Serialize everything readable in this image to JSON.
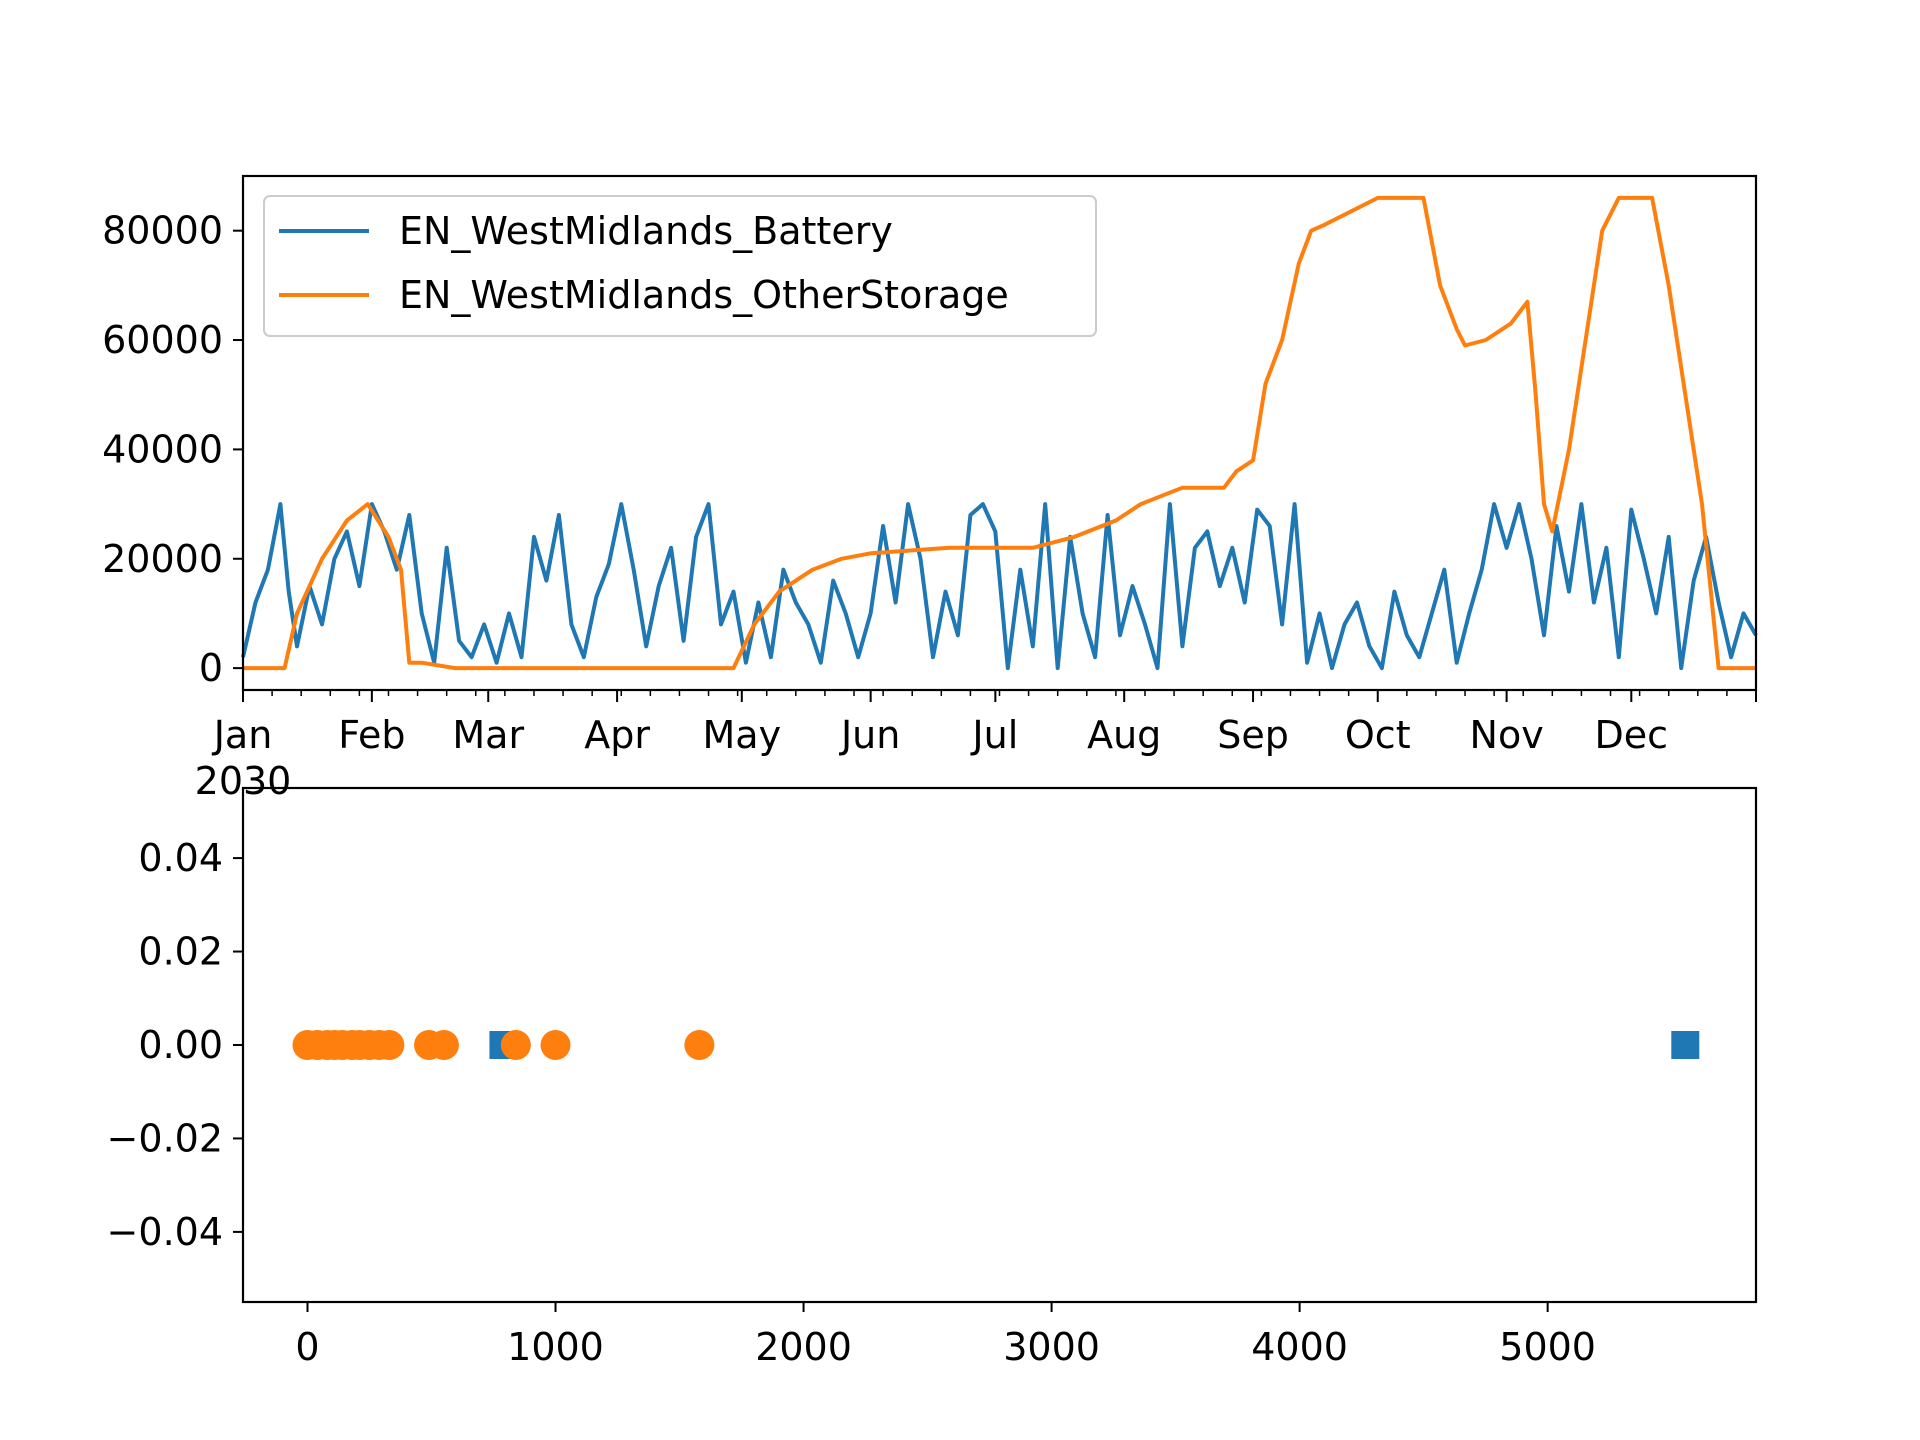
{
  "colors": {
    "battery": "#1f77b4",
    "other_storage": "#ff7f0e",
    "axes": "#000000",
    "legend_border": "#cccccc",
    "background": "#ffffff"
  },
  "chart_data": [
    {
      "type": "line",
      "title": "",
      "xlabel": "",
      "ylabel": "",
      "x_axis": "date",
      "xlim": [
        "2030-01-01",
        "2030-12-31"
      ],
      "ylim": [
        -4000,
        90000
      ],
      "x_tick_labels": [
        "Jan\n2030",
        "Feb",
        "Mar",
        "Apr",
        "May",
        "Jun",
        "Jul",
        "Aug",
        "Sep",
        "Oct",
        "Nov",
        "Dec"
      ],
      "y_tick_values": [
        0,
        20000,
        40000,
        60000,
        80000
      ],
      "y_tick_labels": [
        "0",
        "20000",
        "40000",
        "60000",
        "80000"
      ],
      "grid": false,
      "legend_position": "top-left",
      "series": [
        {
          "name": "EN_WestMidlands_Battery",
          "color": "#1f77b4",
          "x": [
            "2030-01-01",
            "2030-01-04",
            "2030-01-07",
            "2030-01-10",
            "2030-01-12",
            "2030-01-14",
            "2030-01-17",
            "2030-01-20",
            "2030-01-23",
            "2030-01-26",
            "2030-01-29",
            "2030-02-01",
            "2030-02-04",
            "2030-02-07",
            "2030-02-10",
            "2030-02-13",
            "2030-02-16",
            "2030-02-19",
            "2030-02-22",
            "2030-02-25",
            "2030-02-28",
            "2030-03-03",
            "2030-03-06",
            "2030-03-09",
            "2030-03-12",
            "2030-03-15",
            "2030-03-18",
            "2030-03-21",
            "2030-03-24",
            "2030-03-27",
            "2030-03-30",
            "2030-04-02",
            "2030-04-05",
            "2030-04-08",
            "2030-04-11",
            "2030-04-14",
            "2030-04-17",
            "2030-04-20",
            "2030-04-23",
            "2030-04-26",
            "2030-04-29",
            "2030-05-02",
            "2030-05-05",
            "2030-05-08",
            "2030-05-11",
            "2030-05-14",
            "2030-05-17",
            "2030-05-20",
            "2030-05-23",
            "2030-05-26",
            "2030-05-29",
            "2030-06-01",
            "2030-06-04",
            "2030-06-07",
            "2030-06-10",
            "2030-06-13",
            "2030-06-16",
            "2030-06-19",
            "2030-06-22",
            "2030-06-25",
            "2030-06-28",
            "2030-07-01",
            "2030-07-04",
            "2030-07-07",
            "2030-07-10",
            "2030-07-13",
            "2030-07-16",
            "2030-07-19",
            "2030-07-22",
            "2030-07-25",
            "2030-07-28",
            "2030-07-31",
            "2030-08-03",
            "2030-08-06",
            "2030-08-09",
            "2030-08-12",
            "2030-08-15",
            "2030-08-18",
            "2030-08-21",
            "2030-08-24",
            "2030-08-27",
            "2030-08-30",
            "2030-09-02",
            "2030-09-05",
            "2030-09-08",
            "2030-09-11",
            "2030-09-14",
            "2030-09-17",
            "2030-09-20",
            "2030-09-23",
            "2030-09-26",
            "2030-09-29",
            "2030-10-02",
            "2030-10-05",
            "2030-10-08",
            "2030-10-11",
            "2030-10-14",
            "2030-10-17",
            "2030-10-20",
            "2030-10-23",
            "2030-10-26",
            "2030-10-29",
            "2030-11-01",
            "2030-11-04",
            "2030-11-07",
            "2030-11-10",
            "2030-11-13",
            "2030-11-16",
            "2030-11-19",
            "2030-11-22",
            "2030-11-25",
            "2030-11-28",
            "2030-12-01",
            "2030-12-04",
            "2030-12-07",
            "2030-12-10",
            "2030-12-13",
            "2030-12-16",
            "2030-12-19",
            "2030-12-22",
            "2030-12-25",
            "2030-12-28",
            "2030-12-31"
          ],
          "y": [
            2000,
            12000,
            18000,
            30000,
            14000,
            4000,
            15000,
            8000,
            20000,
            25000,
            15000,
            30000,
            25000,
            18000,
            28000,
            10000,
            1000,
            22000,
            5000,
            2000,
            8000,
            1000,
            10000,
            2000,
            24000,
            16000,
            28000,
            8000,
            2000,
            13000,
            19000,
            30000,
            18000,
            4000,
            15000,
            22000,
            5000,
            24000,
            30000,
            8000,
            14000,
            1000,
            12000,
            2000,
            18000,
            12000,
            8000,
            1000,
            16000,
            10000,
            2000,
            10000,
            26000,
            12000,
            30000,
            20000,
            2000,
            14000,
            6000,
            28000,
            30000,
            25000,
            0,
            18000,
            4000,
            30000,
            0,
            24000,
            10000,
            2000,
            28000,
            6000,
            15000,
            8000,
            0,
            30000,
            4000,
            22000,
            25000,
            15000,
            22000,
            12000,
            29000,
            26000,
            8000,
            30000,
            1000,
            10000,
            0,
            8000,
            12000,
            4000,
            0,
            14000,
            6000,
            2000,
            10000,
            18000,
            1000,
            10000,
            18000,
            30000,
            22000,
            30000,
            20000,
            6000,
            26000,
            14000,
            30000,
            12000,
            22000,
            2000,
            29000,
            20000,
            10000,
            24000,
            0,
            16000,
            24000,
            12000,
            2000,
            10000,
            6000
          ]
        },
        {
          "name": "EN_WestMidlands_OtherStorage",
          "color": "#ff7f0e",
          "x": [
            "2030-01-01",
            "2030-01-11",
            "2030-01-14",
            "2030-01-20",
            "2030-01-26",
            "2030-01-31",
            "2030-02-05",
            "2030-02-08",
            "2030-02-10",
            "2030-02-13",
            "2030-02-21",
            "2030-03-01",
            "2030-04-01",
            "2030-04-29",
            "2030-05-04",
            "2030-05-10",
            "2030-05-18",
            "2030-05-25",
            "2030-06-01",
            "2030-06-20",
            "2030-07-01",
            "2030-07-10",
            "2030-07-20",
            "2030-07-30",
            "2030-08-05",
            "2030-08-15",
            "2030-08-25",
            "2030-08-28",
            "2030-09-01",
            "2030-09-04",
            "2030-09-08",
            "2030-09-12",
            "2030-09-15",
            "2030-09-18",
            "2030-10-01",
            "2030-10-12",
            "2030-10-16",
            "2030-10-20",
            "2030-10-22",
            "2030-10-27",
            "2030-11-02",
            "2030-11-06",
            "2030-11-08",
            "2030-11-10",
            "2030-11-12",
            "2030-11-16",
            "2030-11-20",
            "2030-11-24",
            "2030-11-28",
            "2030-12-06",
            "2030-12-10",
            "2030-12-14",
            "2030-12-18",
            "2030-12-22",
            "2030-12-31"
          ],
          "y": [
            0,
            0,
            10000,
            20000,
            27000,
            30000,
            24000,
            18000,
            1000,
            1000,
            0,
            0,
            0,
            0,
            8000,
            14000,
            18000,
            20000,
            21000,
            22000,
            22000,
            22000,
            24000,
            27000,
            30000,
            33000,
            33000,
            36000,
            38000,
            52000,
            60000,
            74000,
            80000,
            81000,
            86000,
            86000,
            70000,
            62000,
            59000,
            60000,
            63000,
            67000,
            50000,
            30000,
            25000,
            40000,
            60000,
            80000,
            86000,
            86000,
            70000,
            50000,
            30000,
            0,
            0
          ]
        }
      ]
    },
    {
      "type": "scatter",
      "title": "",
      "xlabel": "",
      "ylabel": "",
      "xlim": [
        -260,
        5840
      ],
      "ylim": [
        -0.055,
        0.055
      ],
      "x_tick_values": [
        0,
        1000,
        2000,
        3000,
        4000,
        5000
      ],
      "x_tick_labels": [
        "0",
        "1000",
        "2000",
        "3000",
        "4000",
        "5000"
      ],
      "y_tick_values": [
        0.04,
        0.02,
        0.0,
        -0.02,
        -0.04
      ],
      "y_tick_labels": [
        "0.04",
        "0.02",
        "0.00",
        "−0.02",
        "−0.04"
      ],
      "grid": false,
      "series": [
        {
          "color": "#1f77b4",
          "marker": "square",
          "x": [
            790,
            5555
          ],
          "y": [
            0,
            0
          ]
        },
        {
          "color": "#ff7f0e",
          "marker": "circle",
          "x": [
            0,
            40,
            80,
            110,
            140,
            180,
            210,
            250,
            290,
            330,
            490,
            550,
            840,
            1000,
            1580
          ],
          "y": [
            0,
            0,
            0,
            0,
            0,
            0,
            0,
            0,
            0,
            0,
            0,
            0,
            0,
            0,
            0
          ]
        }
      ]
    }
  ]
}
